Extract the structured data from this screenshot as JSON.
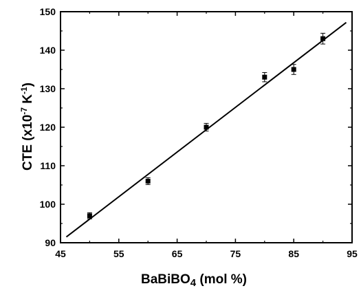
{
  "chart_data": {
    "type": "scatter",
    "title": "",
    "xlabel": "BaBiBO",
    "xlabel_sub": "4",
    "xlabel_suffix": " (mol %)",
    "ylabel_prefix": "CTE (x10",
    "ylabel_sup1": "-7",
    "ylabel_mid": " K",
    "ylabel_sup2": "-1",
    "ylabel_suffix": ")",
    "xlim": [
      45,
      95
    ],
    "ylim": [
      90,
      150
    ],
    "xticks": [
      45,
      55,
      65,
      75,
      85,
      95
    ],
    "yticks": [
      90,
      100,
      110,
      120,
      130,
      140,
      150
    ],
    "grid": false,
    "points": [
      {
        "x": 50,
        "y": 97,
        "err": 0.8
      },
      {
        "x": 60,
        "y": 106,
        "err": 0.9
      },
      {
        "x": 70,
        "y": 120,
        "err": 1.0
      },
      {
        "x": 80,
        "y": 133,
        "err": 1.2
      },
      {
        "x": 85,
        "y": 135,
        "err": 1.3
      },
      {
        "x": 90,
        "y": 143,
        "err": 1.4
      }
    ],
    "fit_line": {
      "x": [
        46,
        94
      ],
      "y": [
        91.5,
        147.2
      ]
    }
  }
}
